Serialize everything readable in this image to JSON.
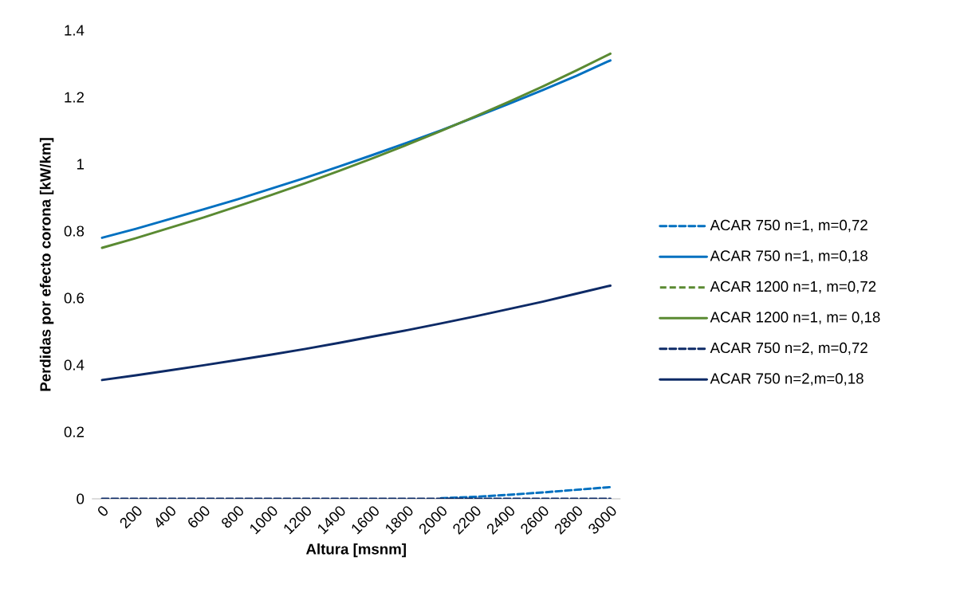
{
  "chart_data": {
    "type": "line",
    "xlabel": "Altura [msnm]",
    "ylabel": "Perdidas por efecto corona  [kW/km]",
    "categories": [
      "0",
      "200",
      "400",
      "600",
      "800",
      "1000",
      "1200",
      "1400",
      "1600",
      "1800",
      "2000",
      "2200",
      "2400",
      "2600",
      "2800",
      "3000"
    ],
    "ylim": [
      0,
      1.4
    ],
    "yticks": [
      0,
      0.2,
      0.4,
      0.6,
      0.8,
      1,
      1.2,
      1.4
    ],
    "grid": false,
    "legend": "right",
    "series": [
      {
        "name": "ACAR 750 n=1, m=0,72",
        "color": "#0070c0",
        "line_style": "dashed",
        "values": [
          null,
          null,
          null,
          null,
          null,
          null,
          null,
          null,
          null,
          null,
          0.002,
          0.006,
          0.012,
          0.019,
          0.027,
          0.035
        ]
      },
      {
        "name": "ACAR 750 n=1, m=0,18",
        "color": "#0070c0",
        "line_style": "solid",
        "values": [
          0.78,
          0.807,
          0.836,
          0.865,
          0.895,
          0.927,
          0.959,
          0.993,
          1.028,
          1.064,
          1.101,
          1.14,
          1.18,
          1.221,
          1.264,
          1.31
        ]
      },
      {
        "name": "ACAR 1200 n=1, m=0,72",
        "color": "#5a8a32",
        "line_style": "dashed",
        "values": [
          null,
          null,
          null,
          null,
          null,
          null,
          null,
          null,
          null,
          null,
          null,
          null,
          null,
          null,
          null,
          null
        ]
      },
      {
        "name": "ACAR 1200 n=1, m= 0,18",
        "color": "#5a8a32",
        "line_style": "solid",
        "values": [
          0.75,
          0.779,
          0.81,
          0.841,
          0.874,
          0.908,
          0.943,
          0.98,
          1.018,
          1.058,
          1.099,
          1.142,
          1.186,
          1.232,
          1.28,
          1.33
        ]
      },
      {
        "name": "ACAR 750 n=2, m=0,72",
        "color": "#0d2a66",
        "line_style": "dashed",
        "values": [
          0,
          0,
          0,
          0,
          0,
          0,
          0,
          0,
          0,
          0,
          0,
          0,
          0,
          0,
          0,
          0
        ]
      },
      {
        "name": "ACAR 750 n=2,m=0,18",
        "color": "#0d2a66",
        "line_style": "solid",
        "values": [
          0.355,
          0.369,
          0.384,
          0.399,
          0.415,
          0.431,
          0.448,
          0.466,
          0.485,
          0.504,
          0.524,
          0.545,
          0.567,
          0.589,
          0.613,
          0.637
        ]
      }
    ]
  }
}
